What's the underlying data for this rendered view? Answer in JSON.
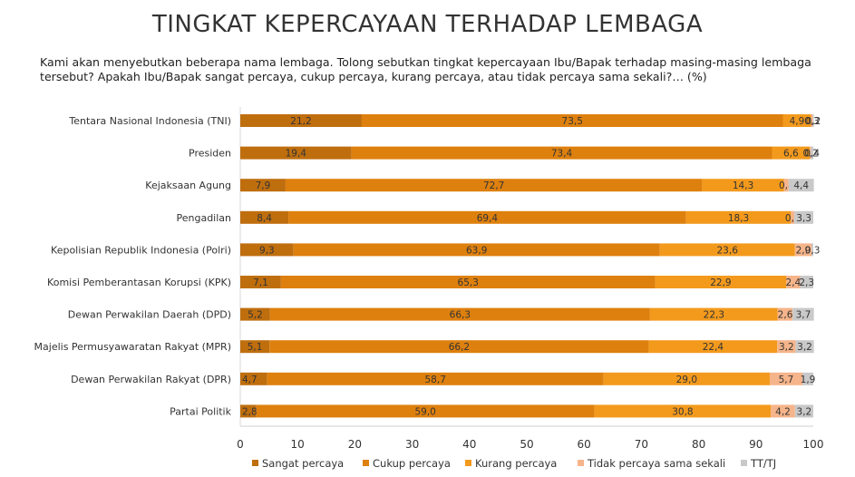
{
  "chart_data": {
    "type": "bar",
    "orientation": "horizontal",
    "stacked": true,
    "title": "TINGKAT KEPERCAYAAN TERHADAP LEMBAGA",
    "subtitle": "Kami akan menyebutkan beberapa nama lembaga. Tolong sebutkan tingkat kepercayaan Ibu/Bapak terhadap masing-masing lembaga tersebut? Apakah Ibu/Bapak sangat percaya, cukup percaya, kurang percaya, atau tidak percaya sama sekali?… (%)",
    "categories": [
      "Tentara Nasional Indonesia (TNI)",
      "Presiden",
      "Kejaksaan Agung",
      "Pengadilan",
      "Kepolisian Republik Indonesia (Polri)",
      "Komisi Pemberantasan Korupsi (KPK)",
      "Dewan Perwakilan Daerah (DPD)",
      "Majelis Permusyawaratan Rakyat (MPR)",
      "Dewan Perwakilan Rakyat (DPR)",
      "Partai Politik"
    ],
    "series": [
      {
        "name": "Sangat percaya",
        "color": "#BF6E0E",
        "values": [
          21.2,
          19.4,
          7.9,
          8.4,
          9.3,
          7.1,
          5.2,
          5.1,
          4.7,
          2.8
        ],
        "labels": [
          "21,2",
          "19,4",
          "7,9",
          "8,4",
          "9,3",
          "7,1",
          "5,2",
          "5,1",
          "4,7",
          "2,8"
        ]
      },
      {
        "name": "Cukup percaya",
        "color": "#DE800E",
        "values": [
          73.5,
          73.4,
          72.7,
          69.4,
          63.9,
          65.3,
          66.3,
          66.2,
          58.7,
          59.0
        ],
        "labels": [
          "73,5",
          "73,4",
          "72,7",
          "69,4",
          "63,9",
          "65,3",
          "66,3",
          "66,2",
          "58,7",
          "59,0"
        ]
      },
      {
        "name": "Kurang percaya",
        "color": "#F39A1D",
        "values": [
          4.9,
          6.6,
          14.3,
          18.3,
          23.6,
          22.9,
          22.3,
          22.4,
          29.0,
          30.8
        ],
        "labels": [
          "4,9",
          "6,6",
          "14,3",
          "18,3",
          "23,6",
          "22,9",
          "22,3",
          "22,4",
          "29,0",
          "30,8"
        ]
      },
      {
        "name": "Tidak percaya sama sekali",
        "color": "#F6B48A",
        "values": [
          0.3,
          0.2,
          0.8,
          0.6,
          2.9,
          2.4,
          2.6,
          3.2,
          5.7,
          4.2
        ],
        "labels": [
          "0,3",
          "0,2",
          "0,8",
          "0,6",
          "2,9",
          "2,4",
          "2,6",
          "3,2",
          "5,7",
          "4,2"
        ]
      },
      {
        "name": "TT/TJ",
        "color": "#C9C9C9",
        "values": [
          0.2,
          0.4,
          4.4,
          3.3,
          0.3,
          2.3,
          3.7,
          3.2,
          1.9,
          3.2
        ],
        "labels": [
          "0,2",
          "0,4",
          "4,4",
          "3,3",
          "0,3",
          "2,3",
          "3,7",
          "3,2",
          "1,9",
          "3,2"
        ]
      }
    ],
    "xlim": [
      0,
      100
    ],
    "xticks": [
      0,
      10,
      20,
      30,
      40,
      50,
      60,
      70,
      80,
      90,
      100
    ],
    "xlabel": "",
    "ylabel": "",
    "grid": false,
    "legend_position": "bottom"
  }
}
